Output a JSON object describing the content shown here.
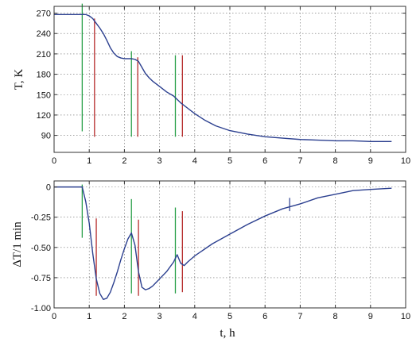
{
  "chart_data": [
    {
      "type": "line",
      "title": "",
      "xlabel": "",
      "ylabel": "T, K",
      "xlim": [
        0,
        10
      ],
      "ylim": [
        65,
        280
      ],
      "x_ticks": [
        "0",
        "1",
        "2",
        "3",
        "4",
        "5",
        "6",
        "7",
        "8",
        "9",
        "10"
      ],
      "y_ticks": [
        "90",
        "120",
        "150",
        "180",
        "210",
        "240",
        "270"
      ],
      "grid": true,
      "series": [
        {
          "color": "#2b3f8f",
          "x": [
            0,
            0.5,
            0.9,
            1.0,
            1.1,
            1.2,
            1.3,
            1.4,
            1.5,
            1.6,
            1.7,
            1.8,
            1.9,
            2.0,
            2.1,
            2.2,
            2.3,
            2.4,
            2.5,
            2.6,
            2.7,
            2.8,
            3.0,
            3.2,
            3.4,
            3.5,
            3.6,
            3.8,
            4.0,
            4.3,
            4.6,
            5.0,
            5.5,
            6.0,
            6.5,
            7.0,
            7.5,
            8.0,
            8.5,
            9.0,
            9.6
          ],
          "y": [
            268,
            268,
            268,
            266,
            262,
            255,
            248,
            240,
            230,
            219,
            211,
            206,
            204,
            203,
            203,
            203,
            202,
            199,
            190,
            181,
            175,
            170,
            162,
            154,
            148,
            143,
            138,
            130,
            122,
            112,
            104,
            97,
            92,
            88,
            86,
            84,
            83,
            82,
            82,
            81,
            81
          ]
        }
      ],
      "vertical_markers": [
        {
          "color": "#2aa04a",
          "x": 0.8,
          "y_range": [
            96,
            284
          ]
        },
        {
          "color": "#b52a2a",
          "x": 1.15,
          "y_range": [
            88,
            262
          ]
        },
        {
          "color": "#2aa04a",
          "x": 2.2,
          "y_range": [
            88,
            214
          ]
        },
        {
          "color": "#b52a2a",
          "x": 2.38,
          "y_range": [
            88,
            205
          ]
        },
        {
          "color": "#2aa04a",
          "x": 3.45,
          "y_range": [
            88,
            208
          ]
        },
        {
          "color": "#b52a2a",
          "x": 3.65,
          "y_range": [
            88,
            208
          ]
        }
      ]
    },
    {
      "type": "line",
      "title": "",
      "xlabel": "t, h",
      "ylabel": "ΔT/1 min",
      "xlim": [
        0,
        10
      ],
      "ylim": [
        -1.0,
        0.05
      ],
      "x_ticks": [
        "0",
        "1",
        "2",
        "3",
        "4",
        "5",
        "6",
        "7",
        "8",
        "9",
        "10"
      ],
      "y_ticks": [
        "0",
        "-0.25",
        "-0.50",
        "-0.75",
        "-1.00"
      ],
      "grid": true,
      "series": [
        {
          "color": "#2b3f8f",
          "x": [
            0,
            0.3,
            0.6,
            0.8,
            0.9,
            1.0,
            1.1,
            1.2,
            1.3,
            1.4,
            1.5,
            1.6,
            1.7,
            1.8,
            1.9,
            2.0,
            2.1,
            2.2,
            2.3,
            2.4,
            2.5,
            2.6,
            2.7,
            2.8,
            2.9,
            3.0,
            3.2,
            3.4,
            3.5,
            3.6,
            3.7,
            3.8,
            4.0,
            4.5,
            5.0,
            5.5,
            6.0,
            6.5,
            7.0,
            7.5,
            8.0,
            8.5,
            9.0,
            9.6
          ],
          "y": [
            0.0,
            0.0,
            0.0,
            0.0,
            -0.12,
            -0.3,
            -0.55,
            -0.76,
            -0.88,
            -0.93,
            -0.92,
            -0.87,
            -0.79,
            -0.7,
            -0.6,
            -0.51,
            -0.43,
            -0.38,
            -0.48,
            -0.7,
            -0.83,
            -0.85,
            -0.84,
            -0.82,
            -0.79,
            -0.76,
            -0.7,
            -0.62,
            -0.56,
            -0.63,
            -0.65,
            -0.62,
            -0.57,
            -0.47,
            -0.39,
            -0.31,
            -0.24,
            -0.18,
            -0.14,
            -0.09,
            -0.06,
            -0.03,
            -0.02,
            -0.01
          ]
        }
      ],
      "vertical_markers": [
        {
          "color": "#2aa04a",
          "x": 0.8,
          "y_range": [
            -0.42,
            0.02
          ]
        },
        {
          "color": "#b52a2a",
          "x": 1.2,
          "y_range": [
            -0.9,
            -0.26
          ]
        },
        {
          "color": "#2aa04a",
          "x": 2.2,
          "y_range": [
            -0.88,
            -0.1
          ]
        },
        {
          "color": "#b52a2a",
          "x": 2.4,
          "y_range": [
            -0.9,
            -0.27
          ]
        },
        {
          "color": "#2aa04a",
          "x": 3.45,
          "y_range": [
            -0.88,
            -0.17
          ]
        },
        {
          "color": "#b52a2a",
          "x": 3.65,
          "y_range": [
            -0.87,
            -0.2
          ]
        },
        {
          "color": "#2b3f8f",
          "x": 6.7,
          "y_range": [
            -0.2,
            -0.09
          ]
        }
      ]
    }
  ]
}
